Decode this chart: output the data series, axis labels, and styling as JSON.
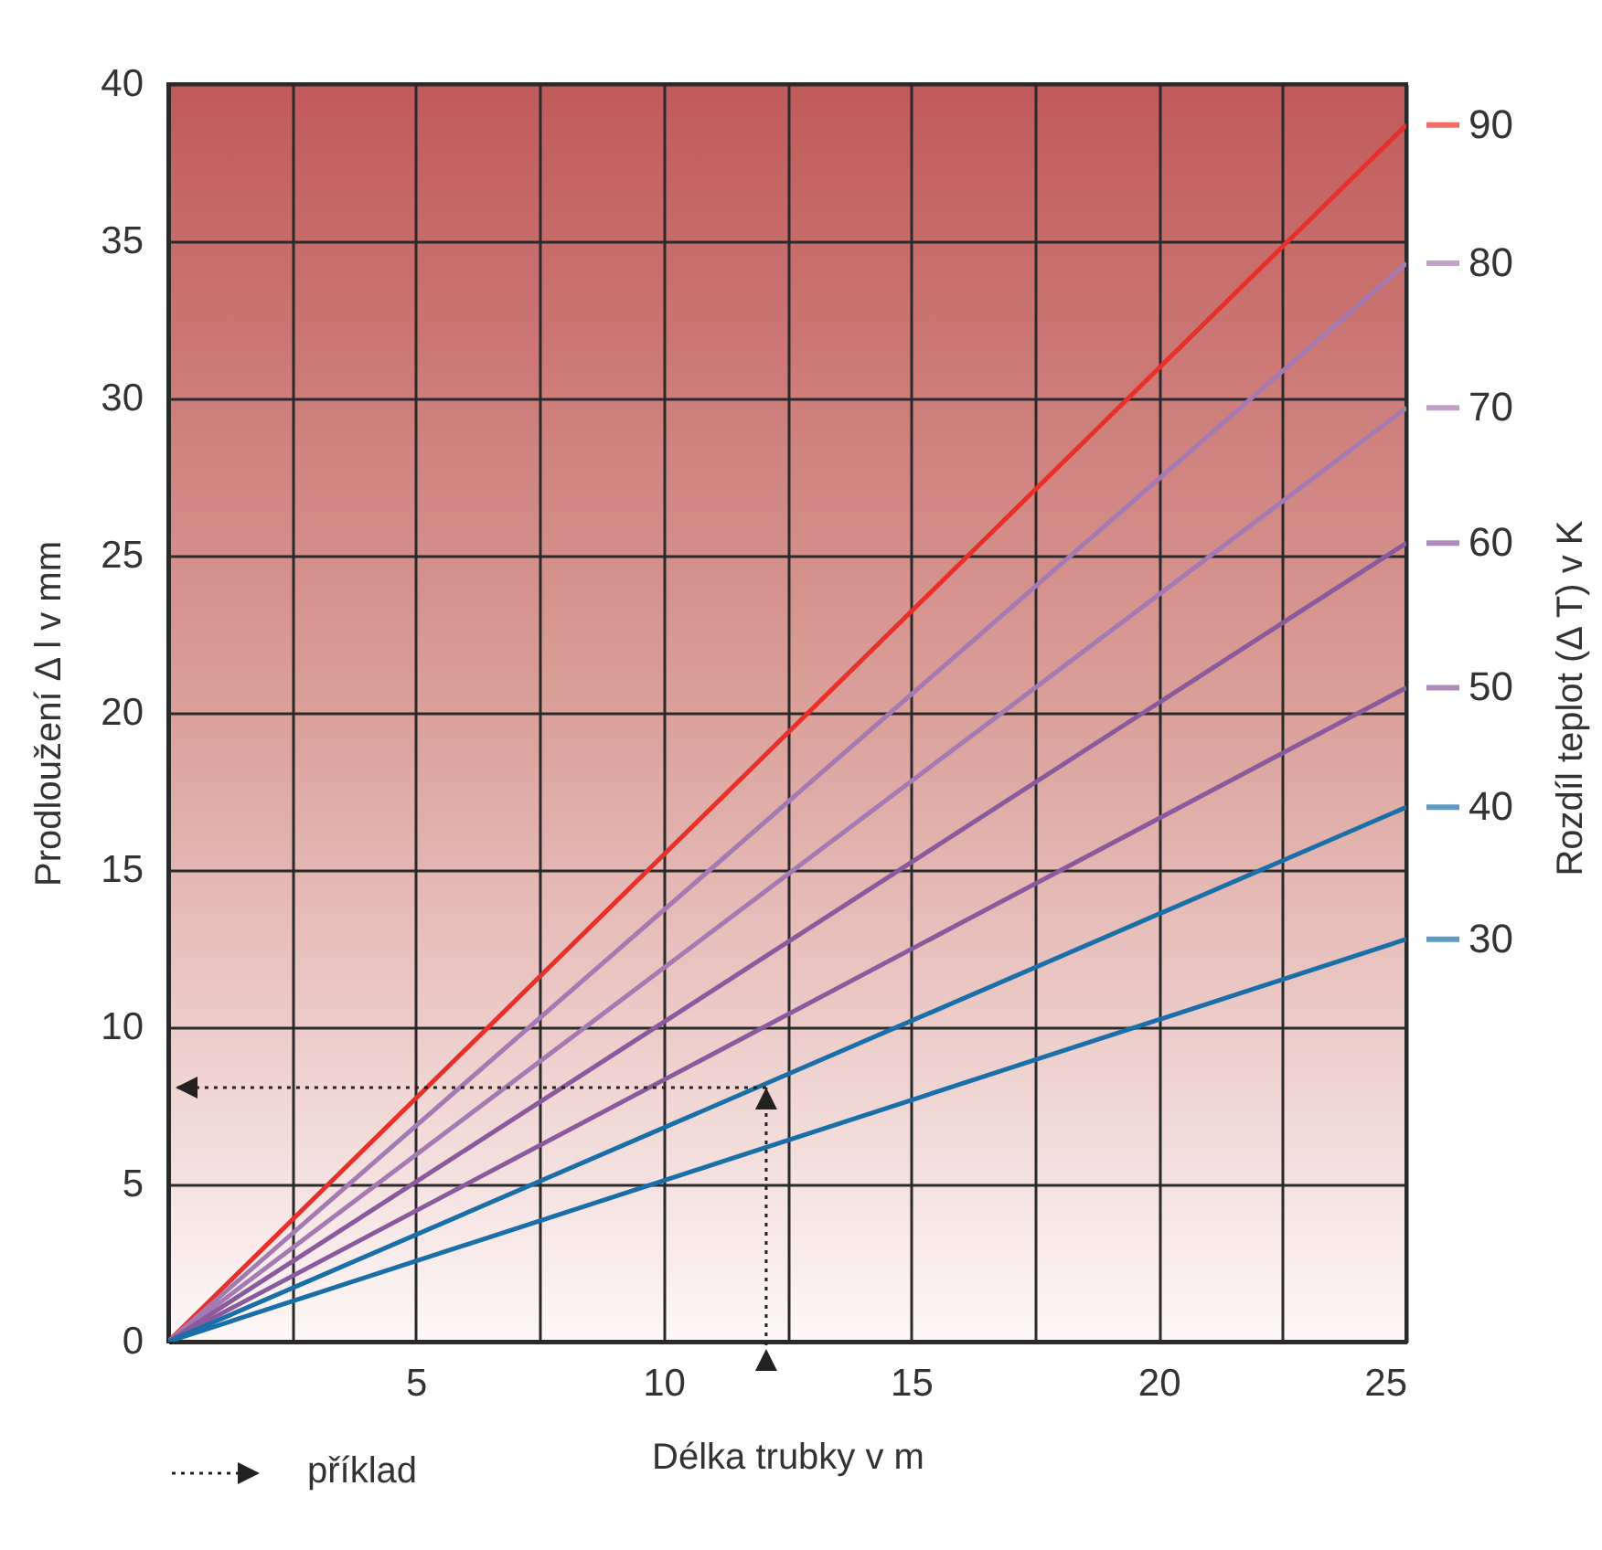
{
  "chart_data": {
    "type": "line",
    "xlabel": "Délka trubky v m",
    "ylabel": "Prodloužení Δ l v mm",
    "y2label": "Rozdíl teplot (Δ T) v K",
    "x": [
      0,
      25
    ],
    "series": [
      {
        "name": "90",
        "color": "#e8302a",
        "values": [
          0,
          38.7
        ]
      },
      {
        "name": "80",
        "color": "#a57ab2",
        "values": [
          0,
          34.3
        ]
      },
      {
        "name": "70",
        "color": "#a57ab2",
        "values": [
          0,
          29.7
        ]
      },
      {
        "name": "60",
        "color": "#8a5a9c",
        "values": [
          0,
          25.4
        ]
      },
      {
        "name": "50",
        "color": "#8a5a9c",
        "values": [
          0,
          20.8
        ]
      },
      {
        "name": "40",
        "color": "#1a6fa8",
        "values": [
          0,
          17.0
        ]
      },
      {
        "name": "30",
        "color": "#1a6fa8",
        "values": [
          0,
          12.8
        ]
      }
    ],
    "xlim": [
      0,
      25
    ],
    "ylim": [
      0,
      40
    ],
    "xticks": [
      {
        "value": 0,
        "label": null
      },
      {
        "value": 2.5,
        "label": null
      },
      5,
      {
        "value": 7.5,
        "label": null
      },
      10,
      {
        "value": 12.5,
        "label": null
      },
      15,
      {
        "value": 17.5,
        "label": null
      },
      20,
      {
        "value": 22.5,
        "label": null
      },
      25
    ],
    "yticks": [
      0,
      5,
      10,
      15,
      20,
      25,
      30,
      35,
      40
    ],
    "grid": true,
    "legend": "right",
    "marker": "none",
    "line_style": "solid",
    "ref_lines": [
      {
        "axis": "x",
        "value": 12,
        "color": "#222222",
        "line_style": "dotted"
      },
      {
        "axis": "y",
        "value": 8.2,
        "color": "#222222",
        "line_style": "dotted"
      }
    ],
    "annotations": [
      "příklad"
    ]
  }
}
